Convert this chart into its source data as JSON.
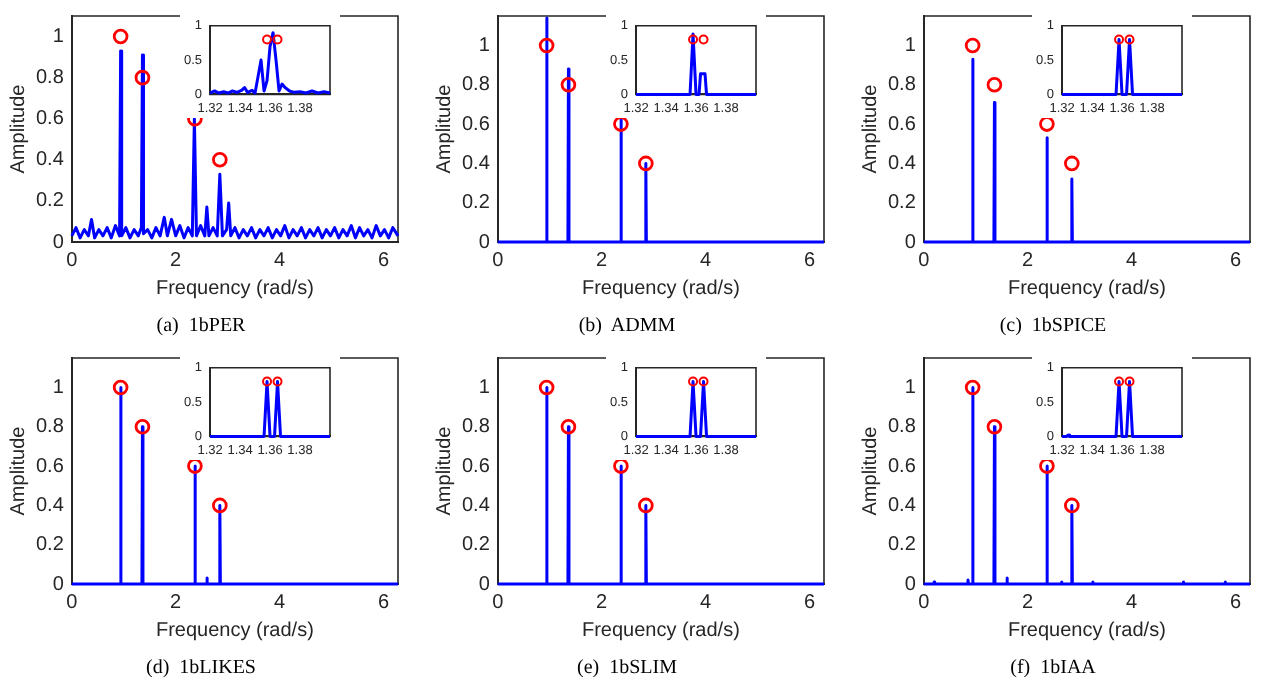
{
  "chart_data": [
    {
      "type": "line",
      "title": "(a)  1bPER",
      "xlabel": "Frequency (rad/s)",
      "ylabel": "Amplitude",
      "xlim": [
        0,
        6.28
      ],
      "xticks": [
        0,
        2,
        4,
        6
      ],
      "ylim": [
        0,
        1.1
      ],
      "yticks": [
        0,
        0.2,
        0.4,
        0.6,
        0.8,
        1
      ],
      "series": [
        {
          "color": "#0000ff",
          "x": [
            0,
            0.08,
            0.16,
            0.24,
            0.32,
            0.38,
            0.44,
            0.52,
            0.6,
            0.68,
            0.76,
            0.84,
            0.92,
            0.94,
            0.96,
            1.04,
            1.12,
            1.2,
            1.28,
            1.34,
            1.36,
            1.38,
            1.46,
            1.54,
            1.62,
            1.7,
            1.78,
            1.84,
            1.92,
            2.0,
            2.08,
            2.16,
            2.24,
            2.32,
            2.36,
            2.4,
            2.48,
            2.56,
            2.6,
            2.64,
            2.72,
            2.8,
            2.85,
            2.9,
            2.98,
            3.02,
            3.06,
            3.14,
            3.22,
            3.3,
            3.38,
            3.46,
            3.54,
            3.62,
            3.7,
            3.78,
            3.86,
            3.94,
            4.02,
            4.1,
            4.18,
            4.26,
            4.34,
            4.42,
            4.5,
            4.58,
            4.66,
            4.74,
            4.82,
            4.9,
            4.98,
            5.06,
            5.14,
            5.22,
            5.3,
            5.38,
            5.46,
            5.54,
            5.62,
            5.7,
            5.78,
            5.86,
            5.94,
            6.02,
            6.1,
            6.18,
            6.28
          ],
          "values": [
            0.03,
            0.07,
            0.02,
            0.06,
            0.03,
            0.11,
            0.02,
            0.06,
            0.03,
            0.07,
            0.02,
            0.08,
            0.03,
            0.93,
            0.03,
            0.07,
            0.02,
            0.06,
            0.03,
            0.07,
            0.91,
            0.04,
            0.06,
            0.02,
            0.07,
            0.03,
            0.12,
            0.03,
            0.11,
            0.03,
            0.08,
            0.02,
            0.07,
            0.03,
            0.6,
            0.03,
            0.08,
            0.03,
            0.17,
            0.03,
            0.07,
            0.03,
            0.33,
            0.03,
            0.06,
            0.19,
            0.03,
            0.07,
            0.02,
            0.06,
            0.03,
            0.07,
            0.02,
            0.06,
            0.03,
            0.07,
            0.02,
            0.06,
            0.03,
            0.08,
            0.02,
            0.06,
            0.03,
            0.07,
            0.02,
            0.06,
            0.03,
            0.07,
            0.02,
            0.06,
            0.03,
            0.07,
            0.02,
            0.06,
            0.03,
            0.08,
            0.02,
            0.07,
            0.03,
            0.06,
            0.02,
            0.08,
            0.03,
            0.06,
            0.02,
            0.07,
            0.03
          ]
        },
        {
          "type": "scatter",
          "color": "#ff0000",
          "marker": "circle",
          "x": [
            0.94,
            1.36,
            2.37,
            2.85
          ],
          "values": [
            1,
            0.8,
            0.6,
            0.4
          ]
        }
      ]
    },
    {
      "type": "line",
      "xlim": [
        1.32,
        1.4
      ],
      "xticks": [
        1.32,
        1.34,
        1.36,
        1.38
      ],
      "ylim": [
        0,
        1
      ],
      "yticks": [
        0,
        0.5,
        1
      ],
      "series": [
        {
          "color": "#0000ff",
          "x": [
            1.32,
            1.323,
            1.326,
            1.329,
            1.332,
            1.335,
            1.338,
            1.341,
            1.343,
            1.345,
            1.348,
            1.35,
            1.354,
            1.356,
            1.358,
            1.36,
            1.362,
            1.364,
            1.366,
            1.368,
            1.37,
            1.373,
            1.376,
            1.38,
            1.384,
            1.388,
            1.392,
            1.396,
            1.4
          ],
          "values": [
            0.02,
            0.05,
            0.02,
            0.04,
            0.02,
            0.05,
            0.03,
            0.06,
            0.1,
            0.03,
            0.06,
            0.02,
            0.5,
            0.05,
            0.2,
            0.7,
            0.9,
            0.5,
            0.05,
            0.15,
            0.1,
            0.05,
            0.03,
            0.04,
            0.02,
            0.05,
            0.02,
            0.04,
            0.02
          ]
        },
        {
          "type": "scatter",
          "color": "#ff0000",
          "marker": "circle",
          "x": [
            1.358,
            1.365
          ],
          "values": [
            0.8,
            0.8
          ]
        }
      ]
    },
    {
      "type": "line",
      "title": "(b)  ADMM",
      "xlabel": "Frequency (rad/s)",
      "ylabel": "Amplitude",
      "xlim": [
        0,
        6.28
      ],
      "xticks": [
        0,
        2,
        4,
        6
      ],
      "ylim": [
        0,
        1.15
      ],
      "yticks": [
        0,
        0.2,
        0.4,
        0.6,
        0.8,
        1
      ],
      "series": [
        {
          "color": "#0000ff",
          "x": [
            0,
            0.93,
            0.94,
            0.95,
            1.35,
            1.36,
            1.37,
            2.36,
            2.37,
            2.38,
            2.84,
            2.85,
            2.86,
            6.28
          ],
          "values": [
            0,
            0,
            1.14,
            0,
            0,
            0.88,
            0,
            0,
            0.65,
            0,
            0,
            0.4,
            0,
            0
          ]
        },
        {
          "type": "scatter",
          "color": "#ff0000",
          "marker": "circle",
          "x": [
            0.94,
            1.36,
            2.37,
            2.85
          ],
          "values": [
            1,
            0.8,
            0.6,
            0.4
          ]
        }
      ]
    },
    {
      "type": "line",
      "xlim": [
        1.32,
        1.4
      ],
      "xticks": [
        1.32,
        1.34,
        1.36,
        1.38
      ],
      "ylim": [
        0,
        1
      ],
      "yticks": [
        0,
        0.5,
        1
      ],
      "series": [
        {
          "color": "#0000ff",
          "x": [
            1.32,
            1.356,
            1.358,
            1.36,
            1.362,
            1.363,
            1.366,
            1.367,
            1.4
          ],
          "values": [
            0,
            0,
            0.88,
            0,
            0,
            0.3,
            0.3,
            0,
            0
          ]
        },
        {
          "type": "scatter",
          "color": "#ff0000",
          "marker": "circle",
          "x": [
            1.358,
            1.365
          ],
          "values": [
            0.8,
            0.8
          ]
        }
      ]
    },
    {
      "type": "line",
      "title": "(c)  1bSPICE",
      "xlabel": "Frequency (rad/s)",
      "ylabel": "Amplitude",
      "xlim": [
        0,
        6.28
      ],
      "xticks": [
        0,
        2,
        4,
        6
      ],
      "ylim": [
        0,
        1.15
      ],
      "yticks": [
        0,
        0.2,
        0.4,
        0.6,
        0.8,
        1
      ],
      "series": [
        {
          "color": "#0000ff",
          "x": [
            0,
            0.93,
            0.94,
            0.95,
            1.35,
            1.36,
            1.37,
            2.36,
            2.37,
            2.38,
            2.84,
            2.85,
            2.86,
            6.28
          ],
          "values": [
            0,
            0,
            0.93,
            0,
            0,
            0.71,
            0,
            0,
            0.53,
            0,
            0,
            0.32,
            0,
            0
          ]
        },
        {
          "type": "scatter",
          "color": "#ff0000",
          "marker": "circle",
          "x": [
            0.94,
            1.36,
            2.37,
            2.85
          ],
          "values": [
            1,
            0.8,
            0.6,
            0.4
          ]
        }
      ]
    },
    {
      "type": "line",
      "xlim": [
        1.32,
        1.4
      ],
      "xticks": [
        1.32,
        1.34,
        1.36,
        1.38
      ],
      "ylim": [
        0,
        1
      ],
      "yticks": [
        0,
        0.5,
        1
      ],
      "series": [
        {
          "color": "#0000ff",
          "x": [
            1.32,
            1.356,
            1.358,
            1.36,
            1.363,
            1.365,
            1.367,
            1.4
          ],
          "values": [
            0,
            0,
            0.8,
            0,
            0,
            0.8,
            0,
            0
          ]
        },
        {
          "type": "scatter",
          "color": "#ff0000",
          "marker": "circle",
          "x": [
            1.358,
            1.365
          ],
          "values": [
            0.8,
            0.8
          ]
        }
      ]
    },
    {
      "type": "line",
      "title": "(d)  1bLIKES",
      "xlabel": "Frequency (rad/s)",
      "ylabel": "Amplitude",
      "xlim": [
        0,
        6.28
      ],
      "xticks": [
        0,
        2,
        4,
        6
      ],
      "ylim": [
        0,
        1.15
      ],
      "yticks": [
        0,
        0.2,
        0.4,
        0.6,
        0.8,
        1
      ],
      "series": [
        {
          "color": "#0000ff",
          "x": [
            0,
            0.93,
            0.94,
            0.95,
            1.35,
            1.36,
            1.37,
            2.36,
            2.37,
            2.38,
            2.59,
            2.6,
            2.61,
            2.84,
            2.85,
            2.86,
            6.28
          ],
          "values": [
            0,
            0,
            1,
            0,
            0,
            0.8,
            0,
            0,
            0.6,
            0,
            0,
            0.03,
            0,
            0,
            0.4,
            0,
            0
          ]
        },
        {
          "type": "scatter",
          "color": "#ff0000",
          "marker": "circle",
          "x": [
            0.94,
            1.36,
            2.37,
            2.85
          ],
          "values": [
            1,
            0.8,
            0.6,
            0.4
          ]
        }
      ]
    },
    {
      "type": "line",
      "xlim": [
        1.32,
        1.4
      ],
      "xticks": [
        1.32,
        1.34,
        1.36,
        1.38
      ],
      "ylim": [
        0,
        1
      ],
      "yticks": [
        0,
        0.5,
        1
      ],
      "series": [
        {
          "color": "#0000ff",
          "x": [
            1.32,
            1.356,
            1.358,
            1.36,
            1.363,
            1.365,
            1.367,
            1.4
          ],
          "values": [
            0,
            0,
            0.8,
            0,
            0,
            0.8,
            0,
            0
          ]
        },
        {
          "type": "scatter",
          "color": "#ff0000",
          "marker": "circle",
          "x": [
            1.358,
            1.365
          ],
          "values": [
            0.8,
            0.8
          ]
        }
      ]
    },
    {
      "type": "line",
      "title": "(e)  1bSLIM",
      "xlabel": "Frequency (rad/s)",
      "ylabel": "Amplitude",
      "xlim": [
        0,
        6.28
      ],
      "xticks": [
        0,
        2,
        4,
        6
      ],
      "ylim": [
        0,
        1.15
      ],
      "yticks": [
        0,
        0.2,
        0.4,
        0.6,
        0.8,
        1
      ],
      "series": [
        {
          "color": "#0000ff",
          "x": [
            0,
            0.93,
            0.94,
            0.95,
            1.35,
            1.36,
            1.37,
            2.36,
            2.37,
            2.38,
            2.84,
            2.85,
            2.86,
            6.28
          ],
          "values": [
            0,
            0,
            1,
            0,
            0,
            0.8,
            0,
            0,
            0.6,
            0,
            0,
            0.4,
            0,
            0
          ]
        },
        {
          "type": "scatter",
          "color": "#ff0000",
          "marker": "circle",
          "x": [
            0.94,
            1.36,
            2.37,
            2.85
          ],
          "values": [
            1,
            0.8,
            0.6,
            0.4
          ]
        }
      ]
    },
    {
      "type": "line",
      "xlim": [
        1.32,
        1.4
      ],
      "xticks": [
        1.32,
        1.34,
        1.36,
        1.38
      ],
      "ylim": [
        0,
        1
      ],
      "yticks": [
        0,
        0.5,
        1
      ],
      "series": [
        {
          "color": "#0000ff",
          "x": [
            1.32,
            1.356,
            1.358,
            1.36,
            1.363,
            1.365,
            1.367,
            1.4
          ],
          "values": [
            0,
            0,
            0.8,
            0,
            0,
            0.8,
            0,
            0
          ]
        },
        {
          "type": "scatter",
          "color": "#ff0000",
          "marker": "circle",
          "x": [
            1.358,
            1.365
          ],
          "values": [
            0.8,
            0.8
          ]
        }
      ]
    },
    {
      "type": "line",
      "title": "(f)  1bIAA",
      "xlabel": "Frequency (rad/s)",
      "ylabel": "Amplitude",
      "xlim": [
        0,
        6.28
      ],
      "xticks": [
        0,
        2,
        4,
        6
      ],
      "ylim": [
        0,
        1.15
      ],
      "yticks": [
        0,
        0.2,
        0.4,
        0.6,
        0.8,
        1
      ],
      "series": [
        {
          "color": "#0000ff",
          "x": [
            0,
            0.19,
            0.2,
            0.21,
            0.84,
            0.85,
            0.86,
            0.93,
            0.94,
            0.95,
            1.35,
            1.36,
            1.37,
            1.59,
            1.6,
            1.61,
            2.36,
            2.37,
            2.38,
            2.64,
            2.65,
            2.66,
            2.84,
            2.85,
            2.86,
            3.24,
            3.25,
            3.26,
            4.99,
            5.0,
            5.01,
            5.79,
            5.8,
            5.81,
            6.28
          ],
          "values": [
            0,
            0,
            0.01,
            0,
            0,
            0.02,
            0,
            0,
            1,
            0,
            0,
            0.8,
            0,
            0,
            0.03,
            0,
            0,
            0.6,
            0,
            0,
            0.01,
            0,
            0,
            0.4,
            0,
            0,
            0.01,
            0,
            0,
            0.01,
            0,
            0,
            0.01,
            0,
            0
          ]
        },
        {
          "type": "scatter",
          "color": "#ff0000",
          "marker": "circle",
          "x": [
            0.94,
            1.36,
            2.37,
            2.85
          ],
          "values": [
            1,
            0.8,
            0.6,
            0.4
          ]
        }
      ]
    },
    {
      "type": "line",
      "xlim": [
        1.32,
        1.4
      ],
      "xticks": [
        1.32,
        1.34,
        1.36,
        1.38
      ],
      "ylim": [
        0,
        1
      ],
      "yticks": [
        0,
        0.5,
        1
      ],
      "series": [
        {
          "color": "#0000ff",
          "x": [
            1.32,
            1.323,
            1.324,
            1.325,
            1.356,
            1.358,
            1.36,
            1.363,
            1.365,
            1.367,
            1.4
          ],
          "values": [
            0,
            0,
            0.02,
            0,
            0,
            0.8,
            0,
            0,
            0.8,
            0,
            0
          ]
        },
        {
          "type": "scatter",
          "color": "#ff0000",
          "marker": "circle",
          "x": [
            1.358,
            1.365
          ],
          "values": [
            0.8,
            0.8
          ]
        }
      ]
    }
  ]
}
